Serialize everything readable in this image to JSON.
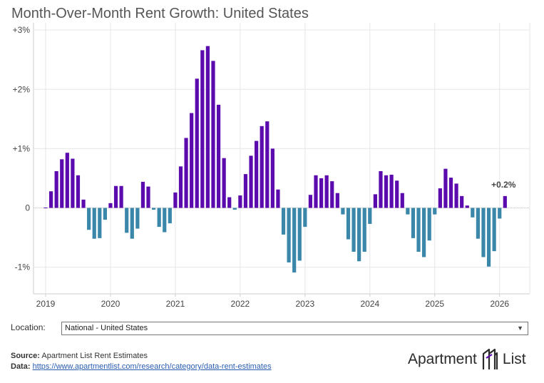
{
  "title": "Month-Over-Month Rent Growth: United States",
  "colors": {
    "positive": "#5b0aad",
    "negative": "#3a87aa",
    "grid": "#e6e6e6",
    "zero": "#bbbbbb",
    "axis": "#cccccc",
    "text": "#444444"
  },
  "chart_data": {
    "type": "bar",
    "title": "Month-Over-Month Rent Growth: United States",
    "xlabel": "",
    "ylabel": "",
    "ylim": [
      -1.45,
      3.05
    ],
    "yticks": [
      3,
      2,
      1,
      0,
      -1
    ],
    "ytick_labels": [
      "+3%",
      "+2%",
      "+1%",
      "0",
      "-1%"
    ],
    "xticks": [
      2019,
      2020,
      2021,
      2022,
      2023,
      2024,
      2025,
      2026
    ],
    "xtick_labels": [
      "2019",
      "2020",
      "2021",
      "2022",
      "2023",
      "2024",
      "2025",
      "2026"
    ],
    "grid": true,
    "start": "2019-01",
    "unit": "percent",
    "values": [
      0.0,
      0.28,
      0.62,
      0.82,
      0.93,
      0.83,
      0.55,
      0.14,
      -0.37,
      -0.52,
      -0.51,
      -0.2,
      0.08,
      0.37,
      0.37,
      -0.42,
      -0.52,
      -0.35,
      0.44,
      0.36,
      -0.03,
      -0.32,
      -0.41,
      -0.26,
      0.26,
      0.7,
      1.18,
      1.6,
      2.18,
      2.66,
      2.73,
      2.48,
      1.74,
      0.84,
      0.18,
      -0.03,
      0.21,
      0.57,
      0.88,
      1.13,
      1.38,
      1.46,
      1.0,
      0.31,
      -0.45,
      -0.92,
      -1.09,
      -0.89,
      -0.32,
      0.22,
      0.55,
      0.5,
      0.55,
      0.45,
      0.25,
      -0.11,
      -0.53,
      -0.74,
      -0.9,
      -0.74,
      -0.27,
      0.23,
      0.62,
      0.55,
      0.56,
      0.46,
      0.25,
      -0.11,
      -0.51,
      -0.74,
      -0.83,
      -0.55,
      -0.11,
      0.33,
      0.66,
      0.51,
      0.41,
      0.2,
      0.04,
      -0.16,
      -0.52,
      -0.83,
      -0.99,
      -0.73,
      -0.18,
      0.2
    ],
    "annotations": [
      {
        "index": 85,
        "text": "+0.2%"
      }
    ]
  },
  "location": {
    "label": "Location:",
    "selected": "National - United States"
  },
  "footer": {
    "source_label": "Source:",
    "source_text": "Apartment List Rent Estimates",
    "data_label": "Data:",
    "data_link": "https://www.apartmentlist.com/research/category/data-rent-estimates"
  },
  "logo": {
    "word1": "Apartment",
    "word2": "List"
  }
}
